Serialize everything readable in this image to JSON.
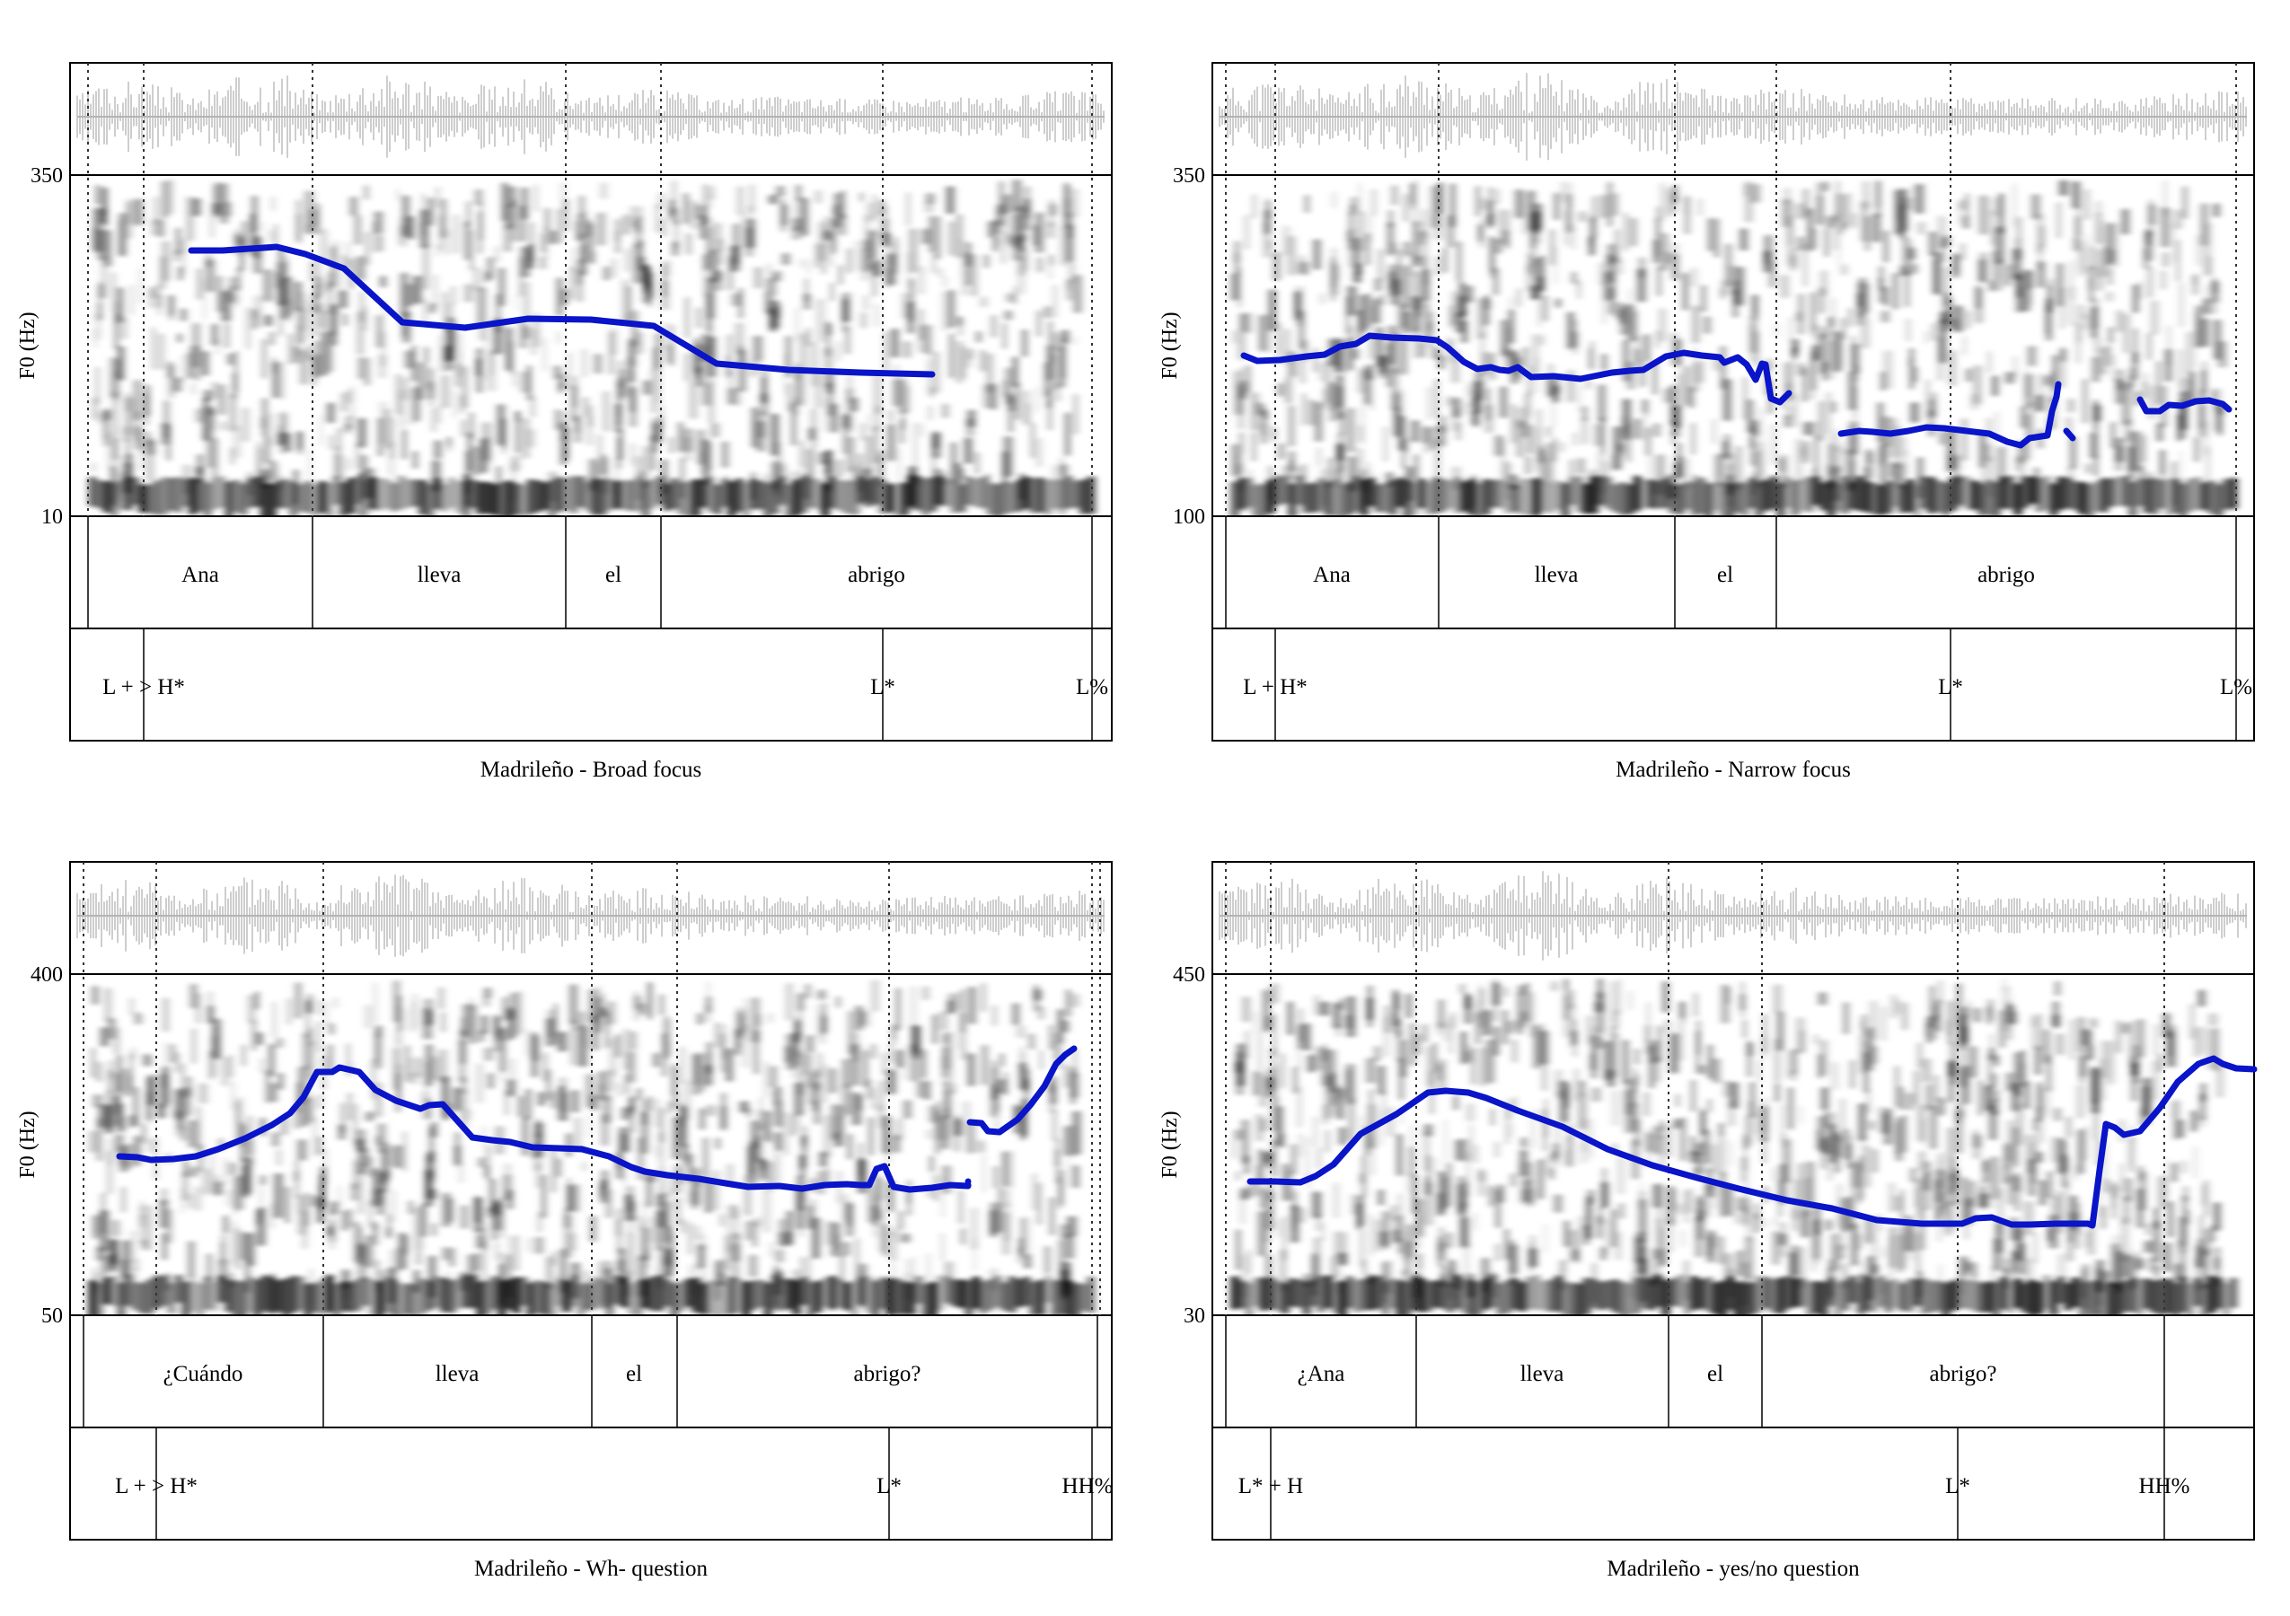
{
  "figure": {
    "panels": [
      {
        "caption": "Madrileño - Broad focus",
        "f0_axis": {
          "label": "F0 (Hz)",
          "top_label": "350",
          "bottom_label": "10"
        },
        "words": [
          "Ana",
          "lleva",
          "el",
          "abrigo"
        ],
        "tones": [
          "L + > H*",
          "L*",
          "L%"
        ],
        "pitch_color": "#0a14c8"
      },
      {
        "caption": "Madrileño - Narrow focus",
        "f0_axis": {
          "label": "F0 (Hz)",
          "top_label": "350",
          "bottom_label": "100"
        },
        "words": [
          "Ana",
          "lleva",
          "el",
          "abrigo"
        ],
        "tones": [
          "L + H*",
          "L*",
          "L%"
        ],
        "pitch_color": "#0a14c8"
      },
      {
        "caption": "Madrileño - Wh- question",
        "f0_axis": {
          "label": "F0 (Hz)",
          "top_label": "400",
          "bottom_label": "50"
        },
        "words": [
          "¿Cuándo",
          "lleva",
          "el",
          "abrigo?"
        ],
        "tones": [
          "L + > H*",
          "L*",
          "HH%"
        ],
        "pitch_color": "#0a14c8"
      },
      {
        "caption": "Madrileño - yes/no question",
        "f0_axis": {
          "label": "F0 (Hz)",
          "top_label": "450",
          "bottom_label": "30"
        },
        "words": [
          "¿Ana",
          "lleva",
          "el",
          "abrigo?"
        ],
        "tones": [
          "L* + H",
          "L*",
          "HH%"
        ],
        "pitch_color": "#0a14c8"
      }
    ]
  }
}
